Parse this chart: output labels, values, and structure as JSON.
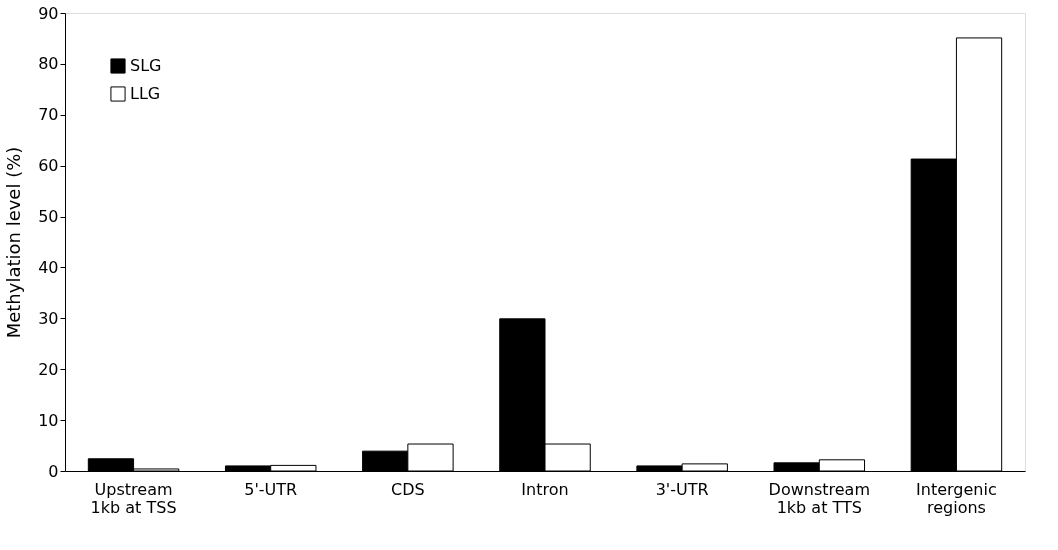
{
  "chart_data": {
    "type": "bar",
    "ylabel": "Methylation level (%)",
    "categories": [
      "Upstream\n1kb at TSS",
      "5'-UTR",
      "CDS",
      "Intron",
      "3'-UTR",
      "Downstream\n1kb at TTS",
      "Intergenic\nregions"
    ],
    "series": [
      {
        "name": "SLG",
        "color": "#000000",
        "values": [
          2.4,
          1.0,
          3.9,
          29.9,
          1.0,
          1.6,
          61.3
        ]
      },
      {
        "name": "LLG",
        "color": "#ffffff",
        "values": [
          0.4,
          1.1,
          5.3,
          5.3,
          1.4,
          2.2,
          85.1
        ]
      }
    ],
    "ylim": [
      0,
      90
    ],
    "yticks": [
      0,
      10,
      20,
      30,
      40,
      50,
      60,
      70,
      80,
      90
    ],
    "grid": false,
    "legend": "top left"
  }
}
